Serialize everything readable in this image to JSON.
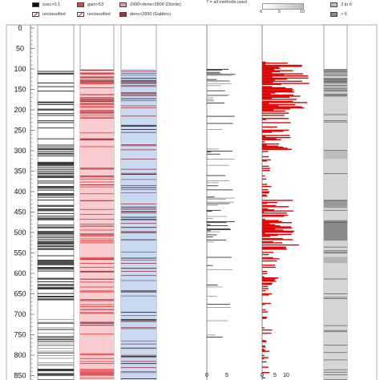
{
  "legend": {
    "susc": "susc>0.1",
    "unclassified_1": "unclassified",
    "gam": "gam>53",
    "unclassified_2": "unclassified",
    "diorite": "2900<dens<2800 (Diorite)",
    "gabbro": "dens>2890 (Gabbro)",
    "methods_note": "7 = all methods used",
    "scale_0": "0",
    "scale_5": "5",
    "scale_10": "10",
    "range_3_6": "3 to 6",
    "range_gt6": "> 6"
  },
  "colors": {
    "susc": "#1a1a1a",
    "gam": "#e8413f",
    "gam_bg": "#f9cccf",
    "diorite": "#c9d9f1",
    "gabbro": "#a0343f",
    "hist": "#e00000",
    "grey_light": "#d6d6d6",
    "grey_mid": "#9a9a9a"
  },
  "depth_axis": {
    "ticks": [
      "0",
      "50",
      "100",
      "150",
      "200",
      "250",
      "300",
      "350",
      "400",
      "450",
      "500",
      "550",
      "600",
      "650",
      "700",
      "750",
      "800",
      "850"
    ]
  },
  "bottom_axis": {
    "col4_ticks": [
      "0",
      "5"
    ],
    "col5_ticks": [
      "0",
      "5",
      "10"
    ]
  }
}
